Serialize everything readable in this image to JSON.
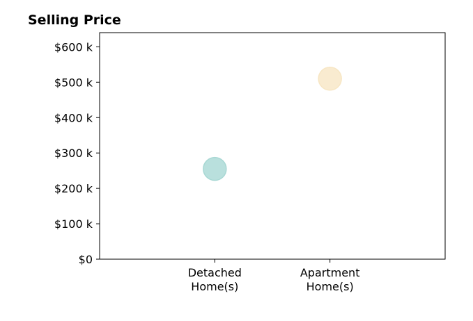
{
  "chart_data": {
    "type": "scatter",
    "title": "Selling Price",
    "xlabel": "",
    "ylabel": "",
    "categories": [
      [
        "Detached",
        "Home(s)"
      ],
      [
        "Apartment",
        "Home(s)"
      ]
    ],
    "x_slots": 3,
    "values": [
      255000,
      510000
    ],
    "colors": [
      "#a8d8d4",
      "#f7e6c4"
    ],
    "ylim": [
      0,
      640000
    ],
    "yticks": [
      0,
      100000,
      200000,
      300000,
      400000,
      500000,
      600000
    ],
    "ytick_labels": [
      "$0",
      "$100 k",
      "$200 k",
      "$300 k",
      "$400 k",
      "$500 k",
      "$600 k"
    ],
    "grid": false,
    "legend": "none"
  }
}
